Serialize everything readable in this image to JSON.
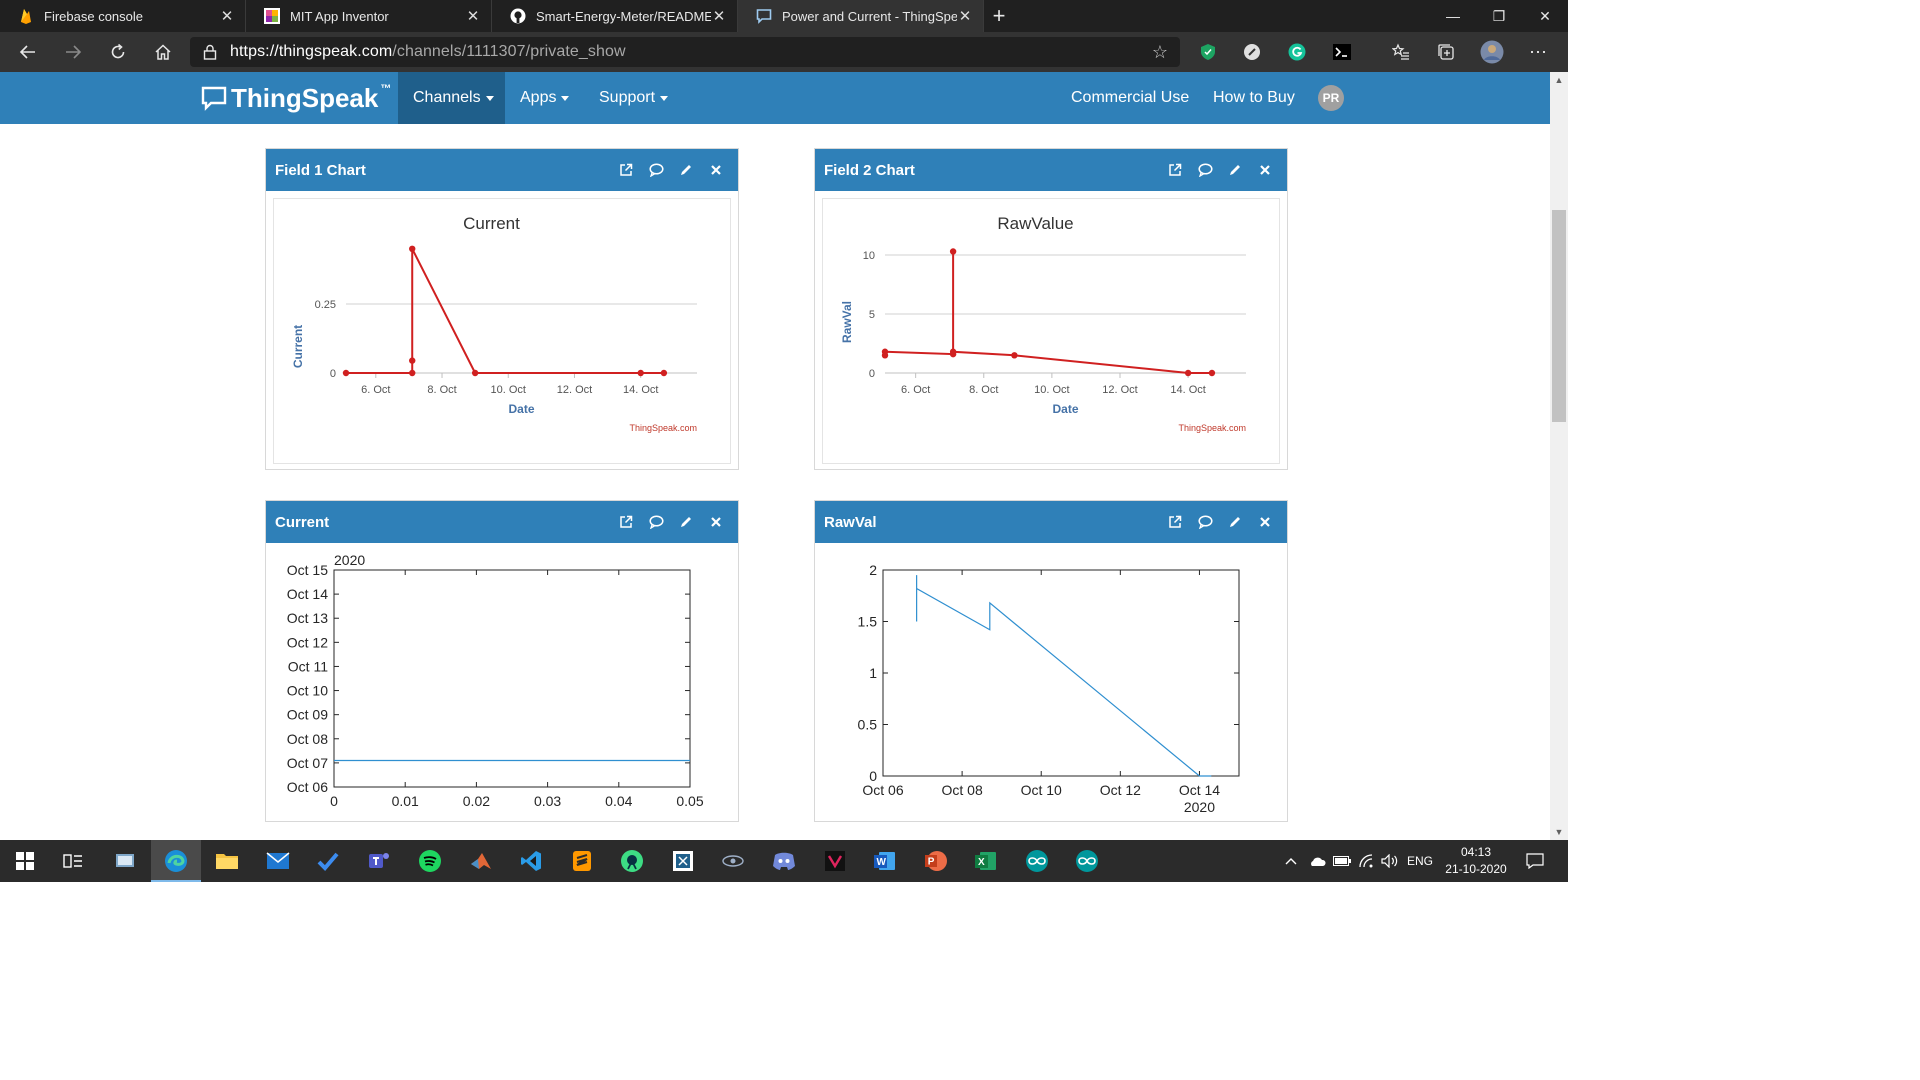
{
  "browser": {
    "tabs": [
      {
        "title": "Firebase console",
        "icon": "firebase-icon"
      },
      {
        "title": "MIT App Inventor",
        "icon": "app-inventor-icon"
      },
      {
        "title": "Smart-Energy-Meter/README.m",
        "icon": "github-icon"
      },
      {
        "title": "Power and Current - ThingSpeak",
        "icon": "thingspeak-icon",
        "active": true
      }
    ],
    "url_host": "https://thingspeak.com",
    "url_path": "/channels/1111307/private_show"
  },
  "nav": {
    "brand": "ThingSpeak",
    "brand_mark": "™",
    "channels": "Channels",
    "apps": "Apps",
    "support": "Support",
    "commercial": "Commercial Use",
    "how_to_buy": "How to Buy",
    "avatar": "PR"
  },
  "widgets": {
    "w1": {
      "title": "Field 1 Chart"
    },
    "w2": {
      "title": "Field 2 Chart"
    },
    "w3": {
      "title": "Current"
    },
    "w4": {
      "title": "RawVal"
    }
  },
  "chart_data": [
    {
      "type": "line",
      "title": "Current",
      "xlabel": "Date",
      "ylabel": "Current",
      "credit": "ThingSpeak.com",
      "xticks": [
        "6. Oct",
        "8. Oct",
        "10. Oct",
        "12. Oct",
        "14. Oct"
      ],
      "yticks": [
        "0",
        "0.25"
      ],
      "xlim": [
        5.1,
        15.7
      ],
      "ylim": [
        0,
        0.25
      ],
      "color": "#d02020",
      "points": [
        [
          5.1,
          0
        ],
        [
          7.1,
          0
        ],
        [
          7.1,
          0.045
        ],
        [
          7.1,
          0.45
        ],
        [
          9.0,
          0
        ],
        [
          14.0,
          0
        ],
        [
          14.7,
          0
        ]
      ]
    },
    {
      "type": "line",
      "title": "RawValue",
      "xlabel": "Date",
      "ylabel": "RawVal",
      "credit": "ThingSpeak.com",
      "xticks": [
        "6. Oct",
        "8. Oct",
        "10. Oct",
        "12. Oct",
        "14. Oct"
      ],
      "yticks": [
        "0",
        "5",
        "10"
      ],
      "xlim": [
        5.1,
        15.7
      ],
      "ylim": [
        0,
        10
      ],
      "color": "#d02020",
      "points": [
        [
          5.1,
          1.5
        ],
        [
          5.1,
          1.8
        ],
        [
          7.1,
          1.6
        ],
        [
          7.1,
          10.3
        ],
        [
          7.1,
          1.8
        ],
        [
          8.9,
          1.5
        ],
        [
          14.0,
          0
        ],
        [
          14.7,
          0
        ]
      ]
    },
    {
      "type": "line",
      "yaxis_title": "2020",
      "xticks": [
        "0",
        "0.01",
        "0.02",
        "0.03",
        "0.04",
        "0.05"
      ],
      "yticks": [
        "Oct 06",
        "Oct 07",
        "Oct 08",
        "Oct 09",
        "Oct 10",
        "Oct 11",
        "Oct 12",
        "Oct 13",
        "Oct 14",
        "Oct 15"
      ],
      "xlim": [
        0,
        0.05
      ],
      "ylim": [
        6,
        15
      ],
      "color": "#2f8fd0",
      "points": [
        [
          0,
          7.1
        ],
        [
          0.05,
          7.1
        ]
      ]
    },
    {
      "type": "line",
      "xaxis_title": "2020",
      "xticks": [
        "Oct 06",
        "Oct 08",
        "Oct 10",
        "Oct 12",
        "Oct 14"
      ],
      "yticks": [
        "0",
        "0.5",
        "1",
        "1.5",
        "2"
      ],
      "xlim": [
        6,
        15
      ],
      "ylim": [
        0,
        2
      ],
      "color": "#2f8fd0",
      "points": [
        [
          6.85,
          1.5
        ],
        [
          6.85,
          1.95
        ],
        [
          6.85,
          1.82
        ],
        [
          8.7,
          1.42
        ],
        [
          8.7,
          1.68
        ],
        [
          14.0,
          0
        ],
        [
          14.3,
          0
        ]
      ]
    }
  ],
  "taskbar": {
    "language": "ENG",
    "time": "04:13",
    "date": "21-10-2020"
  }
}
